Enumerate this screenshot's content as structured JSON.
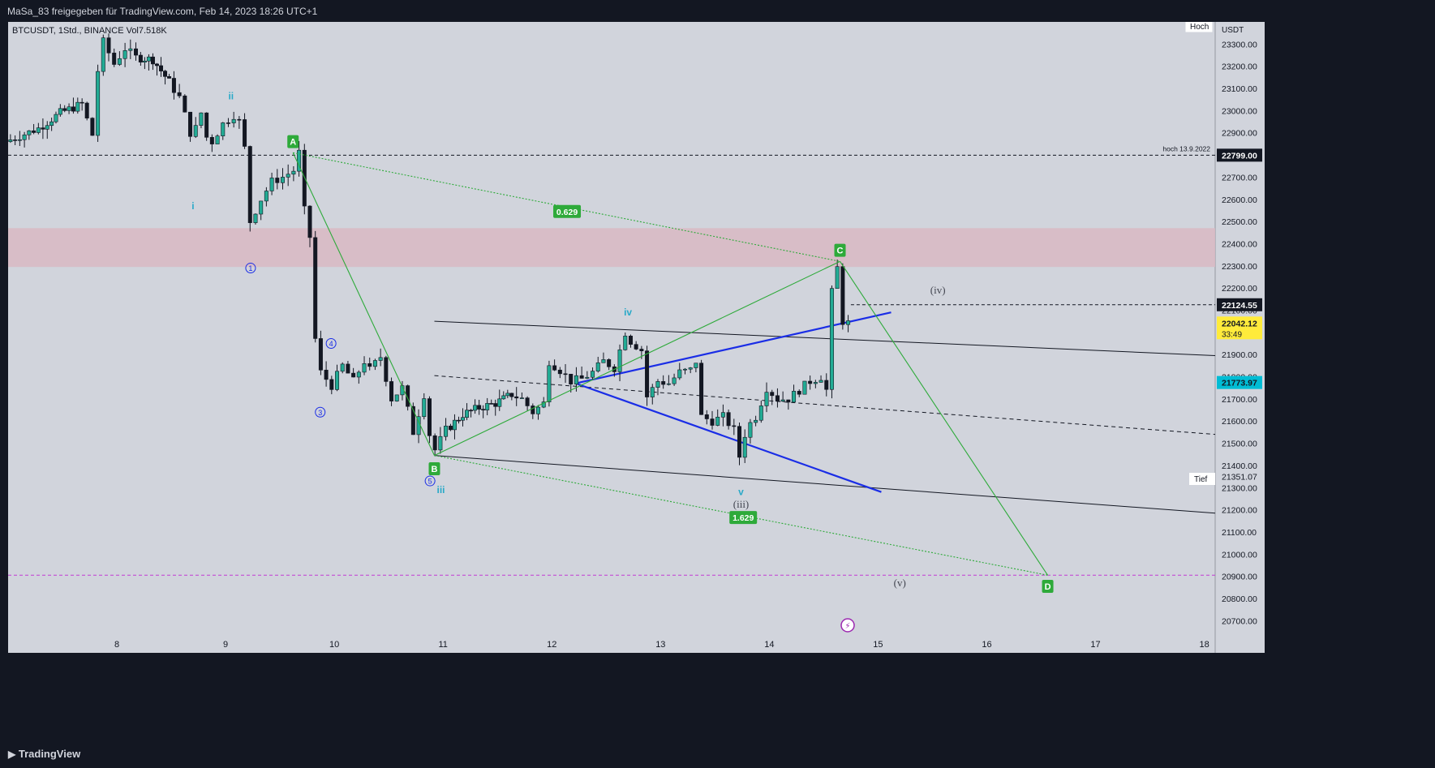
{
  "header": {
    "text": "MaSa_83 freigegeben für TradingView.com, Feb 14, 2023 18:26 UTC+1"
  },
  "legend": {
    "text": "BTCUSDT, 1Std., BINANCE  Vol7.518K"
  },
  "footer": {
    "brand": "TradingView"
  },
  "colors": {
    "background": "#d1d4dc",
    "bull": "#22ab94",
    "bear": "#131722",
    "pattern_green": "#2eaa3a",
    "blue": "#1a2de6",
    "wave_cyan": "#29a9c8",
    "zone": "#d9b9c3",
    "magenta_line": "#c23bd4"
  },
  "chart_data": {
    "type": "candlestick",
    "symbol": "BTCUSDT",
    "interval": "1Std.",
    "exchange": "BINANCE",
    "volume_label": "Vol7.518K",
    "currency": "USDT",
    "ylim": [
      20650,
      23400
    ],
    "y_ticks": [
      20700,
      20800,
      20900,
      21000,
      21100,
      21200,
      21300,
      21400,
      21500,
      21600,
      21700,
      21800,
      21900,
      22000,
      22100,
      22200,
      22300,
      22400,
      22500,
      22600,
      22700,
      22800,
      22900,
      23000,
      23100,
      23200,
      23300
    ],
    "x_ticks": [
      {
        "label": "8",
        "day": 8
      },
      {
        "label": "9",
        "day": 9
      },
      {
        "label": "10",
        "day": 10
      },
      {
        "label": "11",
        "day": 11
      },
      {
        "label": "12",
        "day": 12
      },
      {
        "label": "13",
        "day": 13
      },
      {
        "label": "14",
        "day": 14
      },
      {
        "label": "15",
        "day": 15
      },
      {
        "label": "16",
        "day": 16
      },
      {
        "label": "17",
        "day": 17
      },
      {
        "label": "18",
        "day": 18
      }
    ],
    "xlim_days": [
      7.0,
      18.1
    ],
    "axis_corner_labels": {
      "top": "Hoch",
      "bottom": "Tief"
    },
    "price_labels": [
      {
        "text": "22799.00",
        "price": 22799,
        "style": "black"
      },
      {
        "text": "22124.55",
        "price": 22124.55,
        "style": "black"
      },
      {
        "text": "22042.12",
        "price": 22042.12,
        "style": "yellow",
        "sub": "33:49"
      },
      {
        "text": "21773.97",
        "price": 21773.97,
        "style": "cyan"
      },
      {
        "text": "21351.07",
        "price": 21351.07,
        "style": "plain"
      }
    ],
    "horizontal_lines": [
      {
        "price": 22799,
        "style": "dashed",
        "color": "#131722",
        "label": "hoch 13.9.2022"
      },
      {
        "price": 22124.55,
        "style": "dashed",
        "color": "#131722",
        "from_day": 14.75
      },
      {
        "price": 20905,
        "style": "dashed",
        "color": "#c23bd4"
      }
    ],
    "zone": {
      "price_high": 22470,
      "price_low": 22295
    },
    "candles_anchor": [
      [
        7.0,
        22860
      ],
      [
        7.3,
        22920
      ],
      [
        7.5,
        22990
      ],
      [
        7.7,
        23030
      ],
      [
        7.8,
        22890
      ],
      [
        7.85,
        23180
      ],
      [
        7.9,
        23310
      ],
      [
        8.0,
        23210
      ],
      [
        8.1,
        23280
      ],
      [
        8.2,
        23240
      ],
      [
        8.35,
        23230
      ],
      [
        8.5,
        23130
      ],
      [
        8.6,
        23060
      ],
      [
        8.7,
        22900
      ],
      [
        8.75,
        22920
      ],
      [
        8.8,
        22990
      ],
      [
        8.85,
        22880
      ],
      [
        8.9,
        22860
      ],
      [
        9.0,
        22940
      ],
      [
        9.05,
        22960
      ],
      [
        9.1,
        22980
      ],
      [
        9.15,
        22950
      ],
      [
        9.2,
        22830
      ],
      [
        9.25,
        22500
      ],
      [
        9.35,
        22600
      ],
      [
        9.45,
        22680
      ],
      [
        9.55,
        22700
      ],
      [
        9.65,
        22730
      ],
      [
        9.7,
        22810
      ],
      [
        9.75,
        22550
      ],
      [
        9.8,
        22430
      ],
      [
        9.85,
        21970
      ],
      [
        9.9,
        21820
      ],
      [
        10.0,
        21760
      ],
      [
        10.1,
        21850
      ],
      [
        10.2,
        21780
      ],
      [
        10.3,
        21870
      ],
      [
        10.35,
        21830
      ],
      [
        10.45,
        21890
      ],
      [
        10.55,
        21700
      ],
      [
        10.65,
        21750
      ],
      [
        10.75,
        21550
      ],
      [
        10.85,
        21720
      ],
      [
        10.9,
        21540
      ],
      [
        10.95,
        21470
      ],
      [
        11.05,
        21560
      ],
      [
        11.2,
        21630
      ],
      [
        11.35,
        21660
      ],
      [
        11.5,
        21680
      ],
      [
        11.65,
        21720
      ],
      [
        11.75,
        21700
      ],
      [
        11.85,
        21640
      ],
      [
        11.95,
        21680
      ],
      [
        12.0,
        21870
      ],
      [
        12.1,
        21830
      ],
      [
        12.2,
        21780
      ],
      [
        12.3,
        21790
      ],
      [
        12.4,
        21820
      ],
      [
        12.5,
        21870
      ],
      [
        12.6,
        21840
      ],
      [
        12.7,
        22000
      ],
      [
        12.75,
        21960
      ],
      [
        12.85,
        21920
      ],
      [
        12.9,
        21710
      ],
      [
        13.0,
        21780
      ],
      [
        13.1,
        21770
      ],
      [
        13.2,
        21820
      ],
      [
        13.3,
        21830
      ],
      [
        13.35,
        21870
      ],
      [
        13.4,
        21620
      ],
      [
        13.5,
        21600
      ],
      [
        13.6,
        21620
      ],
      [
        13.7,
        21560
      ],
      [
        13.75,
        21440
      ],
      [
        13.8,
        21540
      ],
      [
        13.85,
        21590
      ],
      [
        13.9,
        21620
      ],
      [
        14.0,
        21750
      ],
      [
        14.1,
        21700
      ],
      [
        14.2,
        21700
      ],
      [
        14.3,
        21740
      ],
      [
        14.4,
        21780
      ],
      [
        14.5,
        21800
      ],
      [
        14.55,
        21740
      ],
      [
        14.6,
        22180
      ],
      [
        14.65,
        22290
      ],
      [
        14.7,
        22050
      ],
      [
        14.75,
        22042
      ]
    ],
    "annotations": [
      {
        "text": "ii",
        "day": 9.05,
        "price": 23065,
        "color": "#29a9c8",
        "kind": "wave"
      },
      {
        "text": "i",
        "day": 8.7,
        "price": 22570,
        "color": "#29a9c8",
        "kind": "wave"
      },
      {
        "text": "1",
        "day": 9.23,
        "price": 22290,
        "color": "#1a2de6",
        "kind": "circle"
      },
      {
        "text": "4",
        "day": 9.97,
        "price": 21950,
        "color": "#1a2de6",
        "kind": "circle"
      },
      {
        "text": "3",
        "day": 9.87,
        "price": 21640,
        "color": "#1a2de6",
        "kind": "circle"
      },
      {
        "text": "5",
        "day": 10.88,
        "price": 21330,
        "color": "#1a2de6",
        "kind": "circle"
      },
      {
        "text": "iii",
        "day": 10.98,
        "price": 21290,
        "color": "#29a9c8",
        "kind": "wave"
      },
      {
        "text": "iv",
        "day": 12.7,
        "price": 22090,
        "color": "#29a9c8",
        "kind": "wave"
      },
      {
        "text": "v",
        "day": 13.74,
        "price": 21280,
        "color": "#29a9c8",
        "kind": "wave"
      },
      {
        "text": "(iii)",
        "day": 13.74,
        "price": 21225,
        "color": "#434651",
        "kind": "paren"
      },
      {
        "text": "(iv)",
        "day": 15.55,
        "price": 22190,
        "color": "#434651",
        "kind": "paren"
      },
      {
        "text": "(v)",
        "day": 15.2,
        "price": 20870,
        "color": "#434651",
        "kind": "paren"
      }
    ],
    "abcd_points": [
      {
        "label": "A",
        "day": 9.62,
        "price": 22810,
        "badge_price": 22860
      },
      {
        "label": "B",
        "day": 10.92,
        "price": 21445,
        "badge_price": 21385
      },
      {
        "label": "C",
        "day": 14.65,
        "price": 22320,
        "badge_price": 22370
      },
      {
        "label": "D",
        "day": 16.56,
        "price": 20905,
        "badge_price": 20855
      }
    ],
    "ratio_labels": [
      {
        "text": "0.629",
        "day": 12.14,
        "price": 22545
      },
      {
        "text": "1.629",
        "day": 13.76,
        "price": 21165
      }
    ],
    "channel_lines": [
      {
        "from": [
          10.92,
          22050
        ],
        "to": [
          18.1,
          21895
        ],
        "style": "solid",
        "color": "#131722"
      },
      {
        "from": [
          10.92,
          21805
        ],
        "to": [
          18.1,
          21540
        ],
        "style": "dashed",
        "color": "#131722"
      },
      {
        "from": [
          10.92,
          21445
        ],
        "to": [
          18.1,
          21185
        ],
        "style": "solid",
        "color": "#131722"
      },
      {
        "from": [
          12.22,
          21770
        ],
        "to": [
          15.12,
          22090
        ],
        "style": "solid",
        "color": "#1a2de6"
      },
      {
        "from": [
          12.22,
          21770
        ],
        "to": [
          15.03,
          21280
        ],
        "style": "solid",
        "color": "#1a2de6"
      }
    ]
  }
}
